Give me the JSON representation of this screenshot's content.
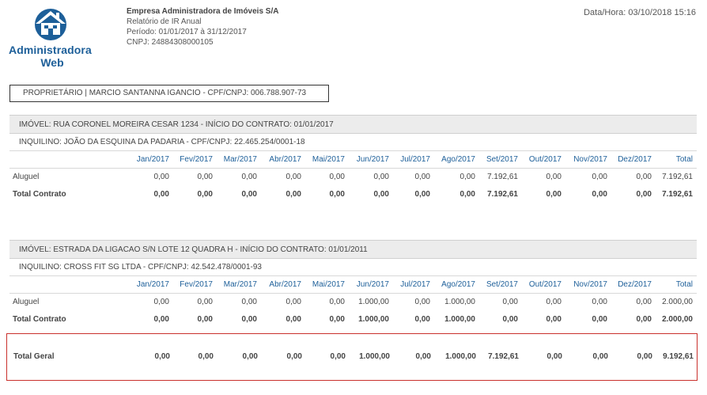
{
  "header": {
    "brand_line1": "Administradora",
    "brand_line2": "Web",
    "company_name": "Empresa Administradora de Imóveis S/A",
    "report_name": "Relatório de IR Anual",
    "period": "Período: 01/01/2017 à 31/12/2017",
    "cnpj": "CNPJ: 24884308000105",
    "datetime": "Data/Hora: 03/10/2018 15:16"
  },
  "owner": "PROPRIETÁRIO | MARCIO SANTANNA IGANCIO - CPF/CNPJ: 006.788.907-73",
  "columns": [
    "Jan/2017",
    "Fev/2017",
    "Mar/2017",
    "Abr/2017",
    "Mai/2017",
    "Jun/2017",
    "Jul/2017",
    "Ago/2017",
    "Set/2017",
    "Out/2017",
    "Nov/2017",
    "Dez/2017",
    "Total"
  ],
  "properties": [
    {
      "title": "IMÓVEL: RUA CORONEL MOREIRA CESAR 1234 - INÍCIO DO CONTRATO: 01/01/2017",
      "tenant": "INQUILINO: JOÃO DA ESQUINA DA PADARIA - CPF/CNPJ: 22.465.254/0001-18",
      "rows": [
        {
          "label": "Aluguel",
          "values": [
            "0,00",
            "0,00",
            "0,00",
            "0,00",
            "0,00",
            "0,00",
            "0,00",
            "0,00",
            "7.192,61",
            "0,00",
            "0,00",
            "0,00",
            "7.192,61"
          ]
        },
        {
          "label": "Total Contrato",
          "values": [
            "0,00",
            "0,00",
            "0,00",
            "0,00",
            "0,00",
            "0,00",
            "0,00",
            "0,00",
            "7.192,61",
            "0,00",
            "0,00",
            "0,00",
            "7.192,61"
          ]
        }
      ]
    },
    {
      "title": "IMÓVEL: ESTRADA DA LIGACAO S/N LOTE 12 QUADRA H - INÍCIO DO CONTRATO: 01/01/2011",
      "tenant": "INQUILINO: CROSS FIT SG LTDA - CPF/CNPJ: 42.542.478/0001-93",
      "rows": [
        {
          "label": "Aluguel",
          "values": [
            "0,00",
            "0,00",
            "0,00",
            "0,00",
            "0,00",
            "1.000,00",
            "0,00",
            "1.000,00",
            "0,00",
            "0,00",
            "0,00",
            "0,00",
            "2.000,00"
          ]
        },
        {
          "label": "Total Contrato",
          "values": [
            "0,00",
            "0,00",
            "0,00",
            "0,00",
            "0,00",
            "1.000,00",
            "0,00",
            "1.000,00",
            "0,00",
            "0,00",
            "0,00",
            "0,00",
            "2.000,00"
          ]
        }
      ]
    }
  ],
  "grand_total": {
    "label": "Total Geral",
    "values": [
      "0,00",
      "0,00",
      "0,00",
      "0,00",
      "0,00",
      "1.000,00",
      "0,00",
      "1.000,00",
      "7.192,61",
      "0,00",
      "0,00",
      "0,00",
      "9.192,61"
    ]
  },
  "colors": {
    "brand_blue": "#1d5f99",
    "highlight_red": "#c9302c",
    "header_gray": "#ececec"
  },
  "icons": {
    "logo": "house-icon"
  }
}
